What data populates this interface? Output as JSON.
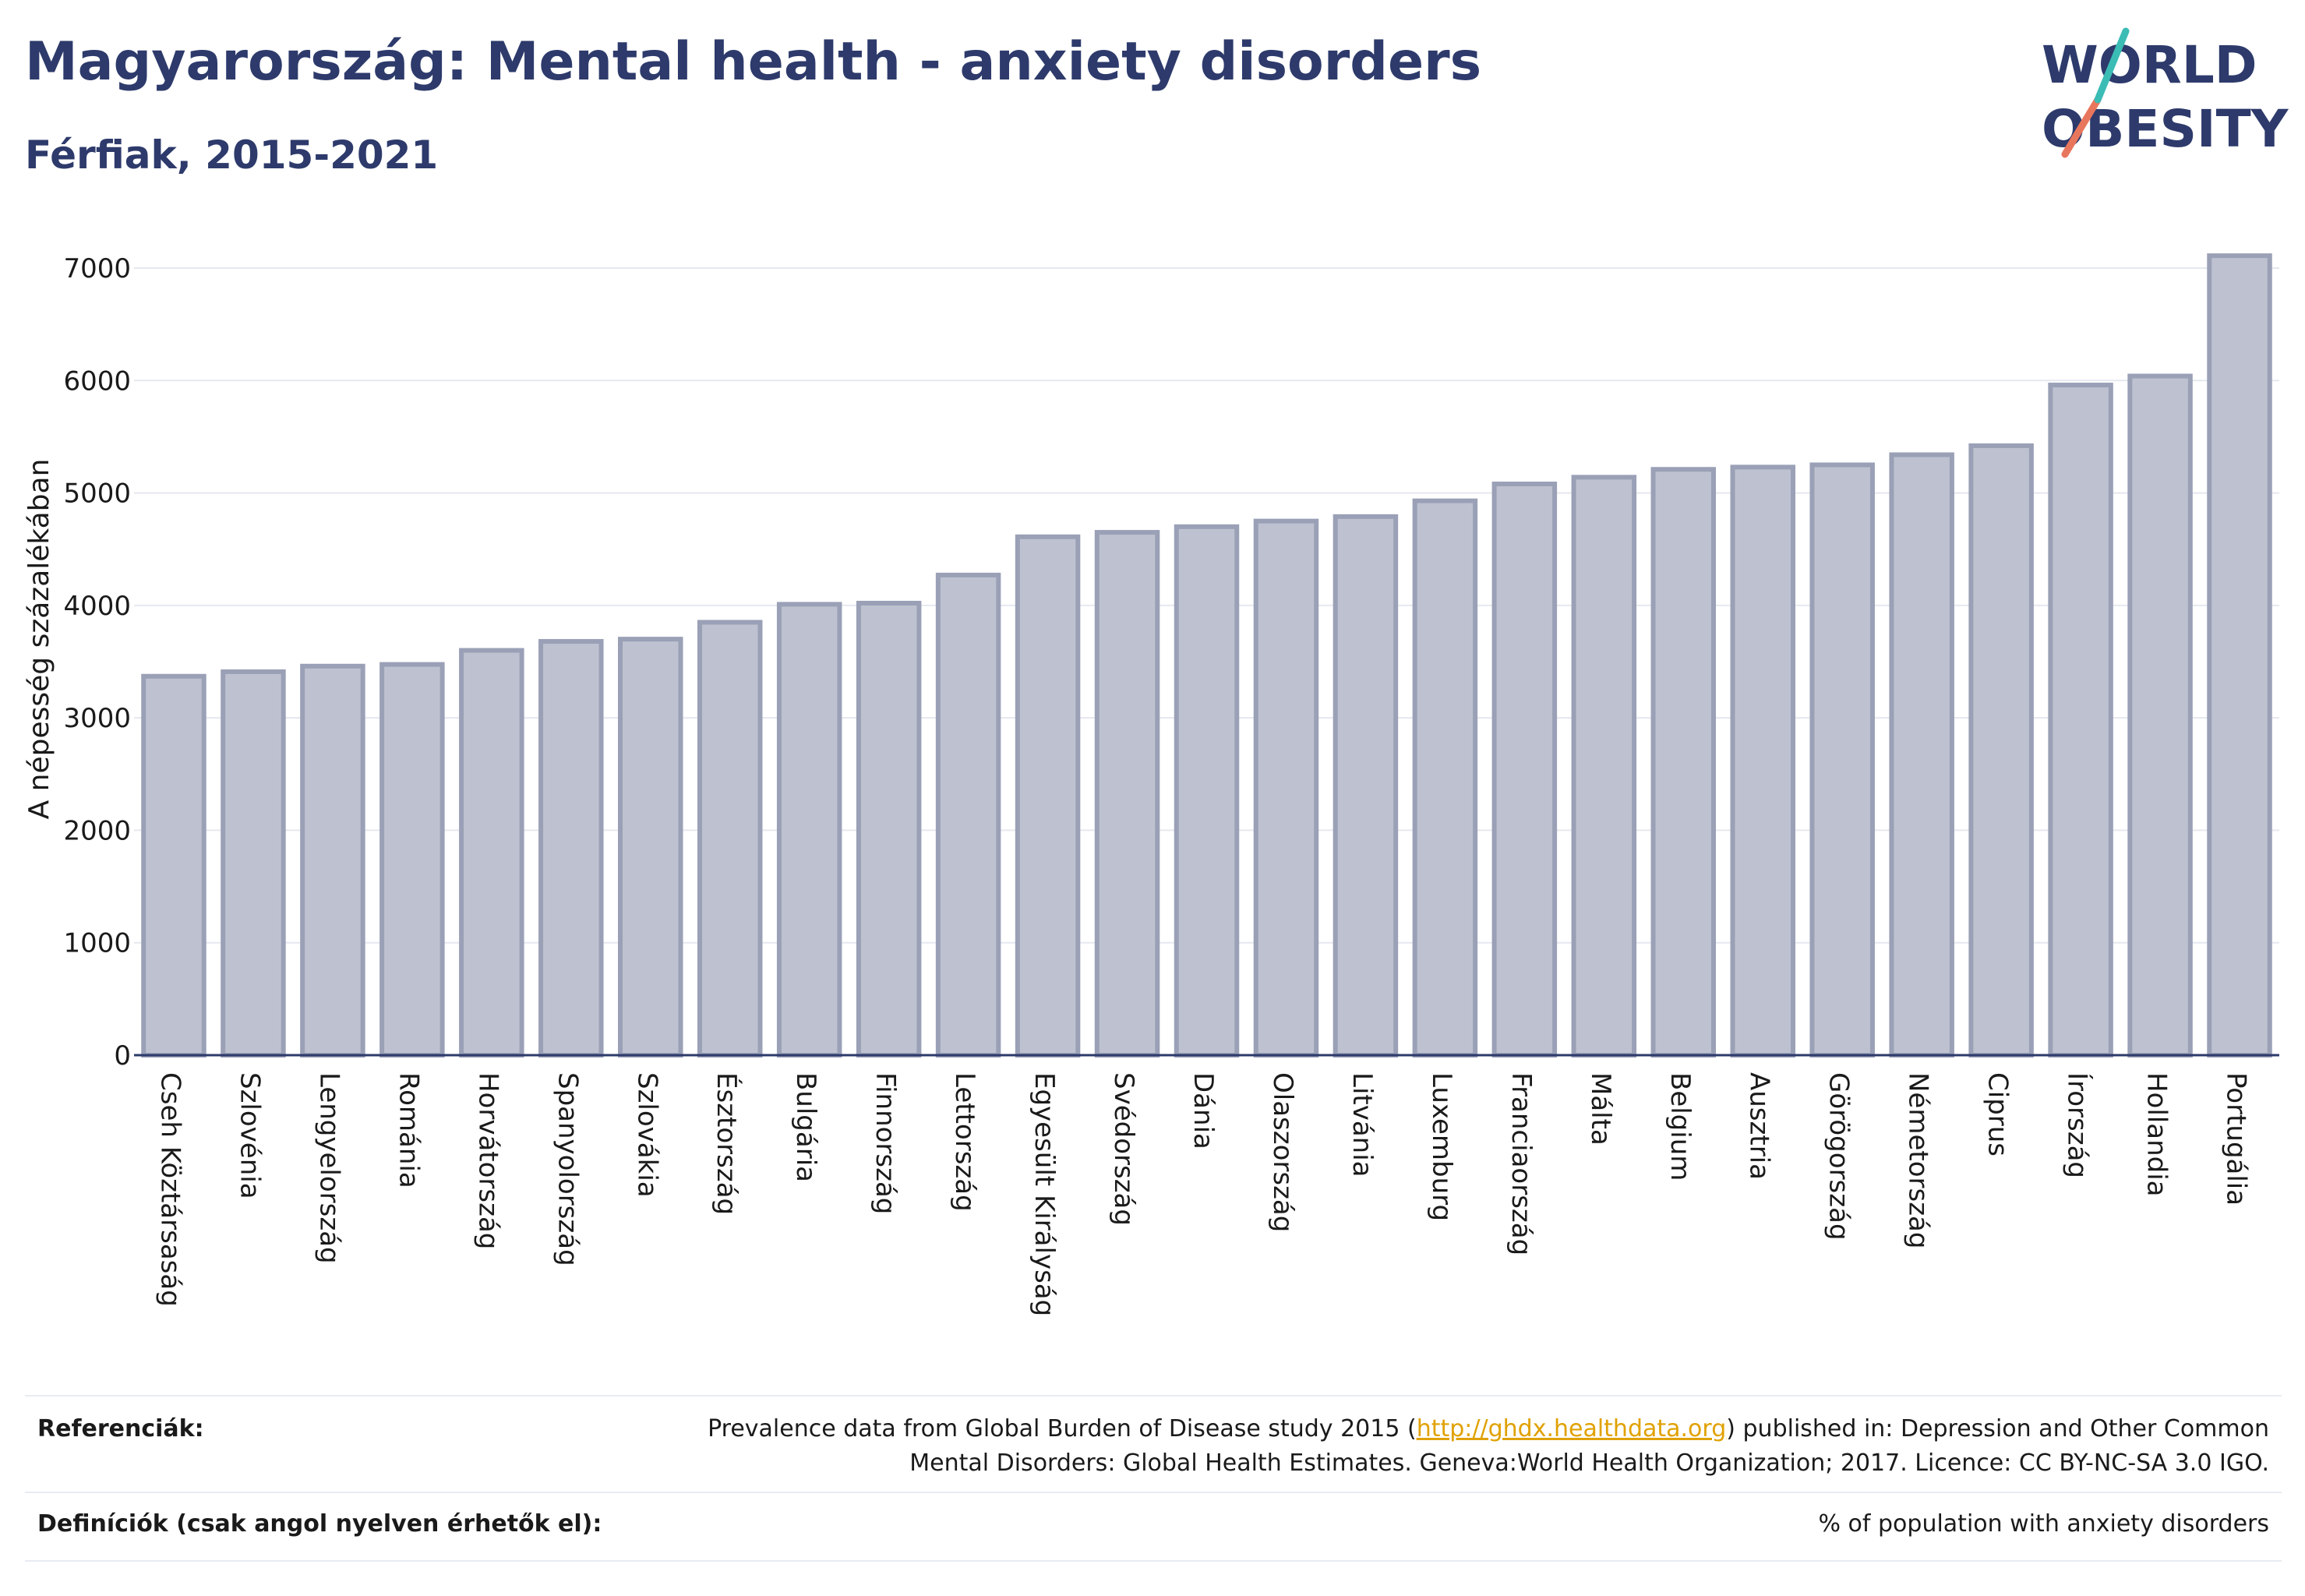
{
  "title": "Magyarország: Mental health - anxiety disorders",
  "subtitle": "Férfiak, 2015-2021",
  "logo": {
    "line1": "WORLD",
    "line2": "OBESITY",
    "colors": [
      "#2d3a6b",
      "#e8765d",
      "#3bbcb5"
    ]
  },
  "chart_data": {
    "type": "bar",
    "ylabel": "A népesség százalékában",
    "ylim": [
      0,
      7000
    ],
    "yticks": [
      0,
      1000,
      2000,
      3000,
      4000,
      5000,
      6000,
      7000
    ],
    "grid": true,
    "bar_color": "#bec2d0",
    "bar_edge_color": "#9aa0b6",
    "categories": [
      "Cseh Köztársaság",
      "Szlovénia",
      "Lengyelország",
      "Románia",
      "Horvátország",
      "Spanyolország",
      "Szlovákia",
      "Észtország",
      "Bulgária",
      "Finnország",
      "Lettország",
      "Egyesült Királyság",
      "Svédország",
      "Dánia",
      "Olaszország",
      "Litvánia",
      "Luxemburg",
      "Franciaország",
      "Málta",
      "Belgium",
      "Ausztria",
      "Görögország",
      "Németország",
      "Ciprus",
      "Írország",
      "Hollandia",
      "Portugália"
    ],
    "values": [
      3370,
      3410,
      3460,
      3475,
      3600,
      3680,
      3700,
      3850,
      4010,
      4020,
      4270,
      4610,
      4650,
      4700,
      4750,
      4790,
      4930,
      5080,
      5140,
      5210,
      5230,
      5250,
      5340,
      5420,
      5960,
      6040,
      7110
    ]
  },
  "references": {
    "label": "Referenciák:",
    "text_before": "Prevalence data from Global Burden of Disease study 2015 (",
    "link": "http://ghdx.healthdata.org",
    "text_after": ") published in: Depression and Other Common",
    "text_line2": "Mental Disorders: Global Health Estimates. Geneva:World Health Organization; 2017. Licence: CC BY-NC-SA 3.0 IGO."
  },
  "definitions": {
    "label": "Definíciók (csak angol nyelven érhetők el):",
    "text": "% of population with anxiety disorders"
  }
}
